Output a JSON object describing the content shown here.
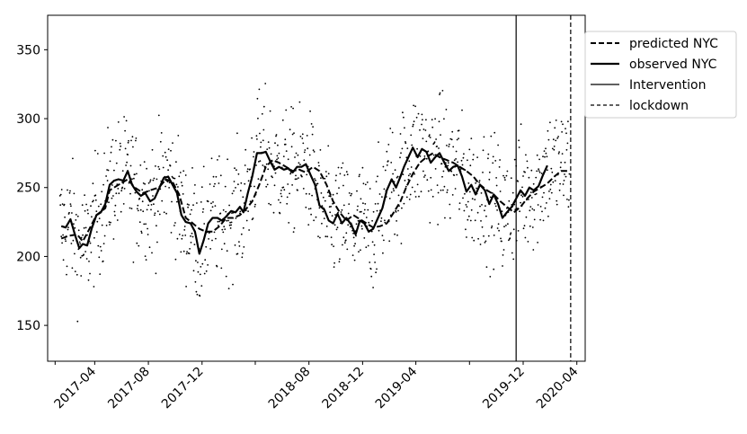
{
  "chart_data": {
    "type": "line",
    "title": "",
    "xlabel": "",
    "ylabel": "",
    "ylim": [
      124,
      375
    ],
    "xlim": [
      "2016-12-15",
      "2020-04-20"
    ],
    "yticks": [
      150,
      200,
      250,
      300,
      350
    ],
    "xticks": [
      {
        "date": "2017-01",
        "label": ""
      },
      {
        "date": "2017-04",
        "label": "2017-04"
      },
      {
        "date": "2017-08",
        "label": "2017-08"
      },
      {
        "date": "2017-12",
        "label": "2017-12"
      },
      {
        "date": "2018-04",
        "label": ""
      },
      {
        "date": "2018-08",
        "label": "2018-08"
      },
      {
        "date": "2018-12",
        "label": "2018-12"
      },
      {
        "date": "2019-04",
        "label": "2019-04"
      },
      {
        "date": "2019-08",
        "label": ""
      },
      {
        "date": "2019-12",
        "label": "2019-12"
      },
      {
        "date": "2020-04",
        "label": "2020-04"
      }
    ],
    "grid": false,
    "legend_position": "upper right, outside plot area",
    "series": [
      {
        "name": "predicted NYC",
        "style": "dashed",
        "color": "#000000",
        "points": [
          [
            "2017-01-15",
            213
          ],
          [
            "2017-02-01",
            215
          ],
          [
            "2017-02-20",
            216
          ],
          [
            "2017-03-05",
            211
          ],
          [
            "2017-03-20",
            220
          ],
          [
            "2017-04-05",
            230
          ],
          [
            "2017-04-25",
            235
          ],
          [
            "2017-05-05",
            248
          ],
          [
            "2017-05-25",
            252
          ],
          [
            "2017-06-15",
            256
          ],
          [
            "2017-07-01",
            250
          ],
          [
            "2017-07-20",
            246
          ],
          [
            "2017-08-05",
            248
          ],
          [
            "2017-08-25",
            250
          ],
          [
            "2017-09-10",
            256
          ],
          [
            "2017-09-25",
            254
          ],
          [
            "2017-10-10",
            245
          ],
          [
            "2017-10-25",
            228
          ],
          [
            "2017-11-10",
            224
          ],
          [
            "2017-11-25",
            220
          ],
          [
            "2017-12-10",
            218
          ],
          [
            "2017-12-25",
            218
          ],
          [
            "2018-01-10",
            222
          ],
          [
            "2018-01-25",
            228
          ],
          [
            "2018-02-10",
            228
          ],
          [
            "2018-02-25",
            230
          ],
          [
            "2018-03-10",
            234
          ],
          [
            "2018-03-25",
            240
          ],
          [
            "2018-04-10",
            252
          ],
          [
            "2018-04-25",
            265
          ],
          [
            "2018-05-10",
            270
          ],
          [
            "2018-05-25",
            268
          ],
          [
            "2018-06-10",
            265
          ],
          [
            "2018-06-25",
            262
          ],
          [
            "2018-07-10",
            263
          ],
          [
            "2018-07-25",
            261
          ],
          [
            "2018-08-10",
            265
          ],
          [
            "2018-08-25",
            262
          ],
          [
            "2018-09-10",
            252
          ],
          [
            "2018-09-25",
            240
          ],
          [
            "2018-10-10",
            232
          ],
          [
            "2018-10-25",
            226
          ],
          [
            "2018-11-10",
            230
          ],
          [
            "2018-11-25",
            227
          ],
          [
            "2018-12-10",
            224
          ],
          [
            "2018-12-25",
            221
          ],
          [
            "2019-01-10",
            222
          ],
          [
            "2019-01-25",
            224
          ],
          [
            "2019-02-10",
            232
          ],
          [
            "2019-02-25",
            240
          ],
          [
            "2019-03-10",
            250
          ],
          [
            "2019-03-25",
            260
          ],
          [
            "2019-04-10",
            268
          ],
          [
            "2019-04-25",
            272
          ],
          [
            "2019-05-10",
            275
          ],
          [
            "2019-05-25",
            272
          ],
          [
            "2019-06-10",
            270
          ],
          [
            "2019-06-25",
            268
          ],
          [
            "2019-07-10",
            265
          ],
          [
            "2019-07-25",
            262
          ],
          [
            "2019-08-10",
            258
          ],
          [
            "2019-08-25",
            252
          ],
          [
            "2019-09-10",
            248
          ],
          [
            "2019-09-25",
            245
          ],
          [
            "2019-10-10",
            240
          ],
          [
            "2019-10-25",
            236
          ],
          [
            "2019-11-10",
            232
          ],
          [
            "2019-11-25",
            236
          ],
          [
            "2019-12-10",
            242
          ],
          [
            "2019-12-25",
            247
          ],
          [
            "2020-01-10",
            250
          ],
          [
            "2020-01-25",
            253
          ],
          [
            "2020-02-10",
            258
          ],
          [
            "2020-02-25",
            262
          ],
          [
            "2020-03-10",
            262
          ]
        ]
      },
      {
        "name": "observed NYC",
        "style": "solid-thick",
        "color": "#000000",
        "points": [
          [
            "2017-01-15",
            222
          ],
          [
            "2017-01-25",
            221
          ],
          [
            "2017-02-05",
            227
          ],
          [
            "2017-02-15",
            216
          ],
          [
            "2017-02-25",
            206
          ],
          [
            "2017-03-05",
            209
          ],
          [
            "2017-03-15",
            208
          ],
          [
            "2017-03-25",
            220
          ],
          [
            "2017-04-05",
            230
          ],
          [
            "2017-04-15",
            232
          ],
          [
            "2017-04-25",
            238
          ],
          [
            "2017-05-05",
            252
          ],
          [
            "2017-05-15",
            255
          ],
          [
            "2017-05-25",
            256
          ],
          [
            "2017-06-05",
            255
          ],
          [
            "2017-06-15",
            262
          ],
          [
            "2017-06-25",
            252
          ],
          [
            "2017-07-05",
            247
          ],
          [
            "2017-07-15",
            244
          ],
          [
            "2017-07-25",
            246
          ],
          [
            "2017-08-05",
            240
          ],
          [
            "2017-08-15",
            242
          ],
          [
            "2017-08-25",
            249
          ],
          [
            "2017-09-05",
            257
          ],
          [
            "2017-09-15",
            258
          ],
          [
            "2017-09-25",
            252
          ],
          [
            "2017-10-05",
            246
          ],
          [
            "2017-10-15",
            230
          ],
          [
            "2017-10-25",
            225
          ],
          [
            "2017-11-05",
            224
          ],
          [
            "2017-11-15",
            218
          ],
          [
            "2017-11-25",
            202
          ],
          [
            "2017-12-05",
            212
          ],
          [
            "2017-12-15",
            224
          ],
          [
            "2017-12-25",
            228
          ],
          [
            "2018-01-05",
            228
          ],
          [
            "2018-01-15",
            226
          ],
          [
            "2018-01-25",
            229
          ],
          [
            "2018-02-05",
            233
          ],
          [
            "2018-02-15",
            232
          ],
          [
            "2018-02-25",
            236
          ],
          [
            "2018-03-05",
            232
          ],
          [
            "2018-03-15",
            246
          ],
          [
            "2018-03-25",
            258
          ],
          [
            "2018-04-05",
            275
          ],
          [
            "2018-04-15",
            275
          ],
          [
            "2018-04-25",
            276
          ],
          [
            "2018-05-05",
            269
          ],
          [
            "2018-05-15",
            263
          ],
          [
            "2018-05-25",
            265
          ],
          [
            "2018-06-05",
            263
          ],
          [
            "2018-06-15",
            264
          ],
          [
            "2018-06-25",
            261
          ],
          [
            "2018-07-05",
            265
          ],
          [
            "2018-07-15",
            265
          ],
          [
            "2018-07-25",
            267
          ],
          [
            "2018-08-05",
            259
          ],
          [
            "2018-08-15",
            252
          ],
          [
            "2018-08-25",
            237
          ],
          [
            "2018-09-05",
            234
          ],
          [
            "2018-09-15",
            226
          ],
          [
            "2018-09-25",
            224
          ],
          [
            "2018-10-05",
            231
          ],
          [
            "2018-10-15",
            224
          ],
          [
            "2018-10-25",
            228
          ],
          [
            "2018-11-05",
            223
          ],
          [
            "2018-11-15",
            216
          ],
          [
            "2018-11-25",
            226
          ],
          [
            "2018-12-05",
            224
          ],
          [
            "2018-12-15",
            218
          ],
          [
            "2018-12-25",
            220
          ],
          [
            "2019-01-05",
            228
          ],
          [
            "2019-01-15",
            235
          ],
          [
            "2019-01-25",
            248
          ],
          [
            "2019-02-05",
            256
          ],
          [
            "2019-02-15",
            250
          ],
          [
            "2019-02-25",
            258
          ],
          [
            "2019-03-05",
            265
          ],
          [
            "2019-03-15",
            272
          ],
          [
            "2019-03-25",
            279
          ],
          [
            "2019-04-05",
            272
          ],
          [
            "2019-04-15",
            278
          ],
          [
            "2019-04-25",
            276
          ],
          [
            "2019-05-05",
            268
          ],
          [
            "2019-05-15",
            272
          ],
          [
            "2019-05-25",
            275
          ],
          [
            "2019-06-05",
            268
          ],
          [
            "2019-06-15",
            262
          ],
          [
            "2019-06-25",
            265
          ],
          [
            "2019-07-05",
            266
          ],
          [
            "2019-07-15",
            258
          ],
          [
            "2019-07-25",
            247
          ],
          [
            "2019-08-05",
            252
          ],
          [
            "2019-08-15",
            245
          ],
          [
            "2019-08-25",
            252
          ],
          [
            "2019-09-05",
            248
          ],
          [
            "2019-09-15",
            238
          ],
          [
            "2019-09-25",
            245
          ],
          [
            "2019-10-05",
            238
          ],
          [
            "2019-10-15",
            228
          ],
          [
            "2019-10-25",
            232
          ],
          [
            "2019-11-05",
            236
          ],
          [
            "2019-11-15",
            242
          ],
          [
            "2019-11-25",
            248
          ],
          [
            "2019-12-05",
            244
          ],
          [
            "2019-12-15",
            250
          ],
          [
            "2019-12-25",
            248
          ],
          [
            "2020-01-05",
            251
          ],
          [
            "2020-01-15",
            259
          ],
          [
            "2020-01-25",
            266
          ]
        ]
      }
    ],
    "vertical_lines": [
      {
        "name": "Intervention",
        "date": "2019-11-15",
        "style": "solid"
      },
      {
        "name": "lockdown",
        "date": "2020-03-18",
        "style": "dashed"
      }
    ],
    "scatter_points": "daily observations (~1170 small dots), approx. range 135–360 following the seasonal pattern of the observed line"
  },
  "legend": {
    "items": [
      {
        "label": "predicted NYC",
        "style": "dashed"
      },
      {
        "label": "observed NYC",
        "style": "thick"
      },
      {
        "label": "Intervention",
        "style": "solid"
      },
      {
        "label": "lockdown",
        "style": "dashed-thin"
      }
    ]
  }
}
